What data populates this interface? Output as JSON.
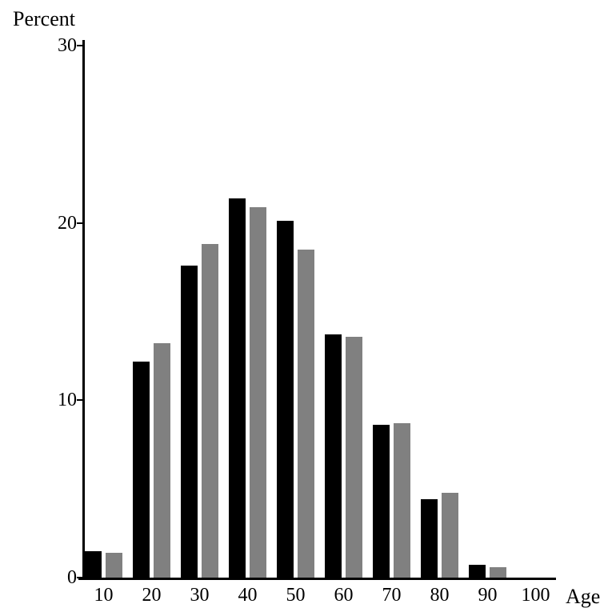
{
  "chart_data": {
    "type": "bar",
    "title": "",
    "xlabel": "Age",
    "ylabel": "Percent",
    "categories": [
      "10",
      "20",
      "30",
      "40",
      "50",
      "60",
      "70",
      "80",
      "90",
      "100"
    ],
    "series": [
      {
        "name": "black",
        "color": "#000000",
        "values": [
          1.5,
          12.2,
          17.6,
          21.4,
          20.1,
          13.7,
          8.6,
          4.4,
          0.7,
          0
        ]
      },
      {
        "name": "gray",
        "color": "#808080",
        "values": [
          1.4,
          13.2,
          18.8,
          20.9,
          18.5,
          13.6,
          8.7,
          4.8,
          0.6,
          0
        ]
      }
    ],
    "ylim": [
      0,
      30
    ],
    "yticks": [
      0,
      10,
      20,
      30
    ],
    "grid": false,
    "legend": "none",
    "colors": {
      "axis": "#000000",
      "background": "#ffffff",
      "series_black": "#000000",
      "series_gray": "#808080"
    }
  }
}
